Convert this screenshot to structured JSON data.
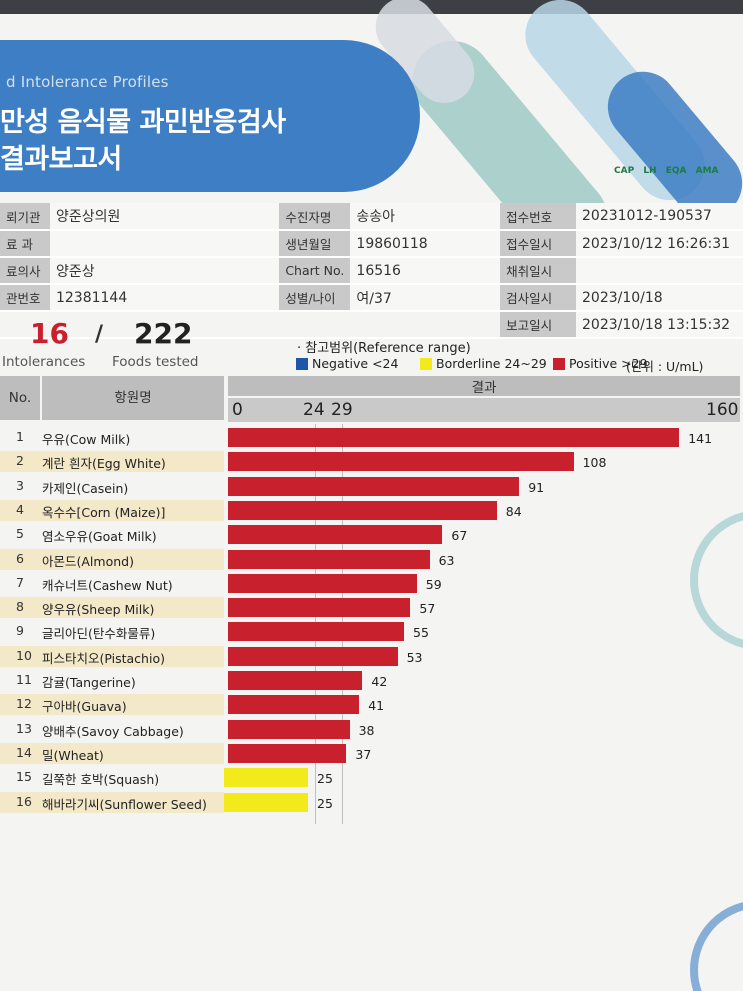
{
  "header": {
    "english_title": "d Intolerance Profiles",
    "korean_title_line1": "만성 음식물 과민반응검사",
    "korean_title_line2": "결과보고서",
    "logos": [
      "CAP",
      "LH",
      "EQA",
      "AMA"
    ]
  },
  "info": {
    "rows": [
      {
        "l1": "뢰기관",
        "v1": "양준상의원",
        "l2": "수진자명",
        "v2": "송송아",
        "l3": "접수번호",
        "v3": "20231012-190537"
      },
      {
        "l1": "료 과",
        "v1": "",
        "l2": "생년월일",
        "v2": "19860118",
        "l3": "접수일시",
        "v3": "2023/10/12  16:26:31"
      },
      {
        "l1": "료의사",
        "v1": "양준상",
        "l2": "Chart No.",
        "v2": "16516",
        "l3": "채취일시",
        "v3": ""
      },
      {
        "l1": "관번호",
        "v1": "12381144",
        "l2": "성별/나이",
        "v2": "여/37",
        "l3": "검사일시",
        "v3": "2023/10/18"
      },
      {
        "l1": "",
        "v1": "",
        "l2": "",
        "v2": "",
        "l3": "보고일시",
        "v3": "2023/10/18  13:15:32"
      }
    ]
  },
  "summary": {
    "intolerances": "16",
    "slash": "/",
    "foods_tested": "222",
    "intolerances_label": "Intolerances",
    "foods_label": "Foods tested"
  },
  "reference": {
    "title": "· 참고범위(Reference range)",
    "negative": "Negative <24",
    "borderline": "Borderline 24~29",
    "positive": "Positive >29",
    "unit": "(단위 : U/mL)",
    "colors": {
      "negative": "#1d56a8",
      "borderline": "#f2ea1a",
      "positive": "#c8202c"
    }
  },
  "table": {
    "col_no": "No.",
    "col_name": "항원명",
    "col_result": "결과",
    "ticks": [
      "0",
      "24",
      "29",
      "160"
    ]
  },
  "chart_data": {
    "type": "bar",
    "orientation": "horizontal",
    "xlim": [
      0,
      160
    ],
    "thresholds": [
      24,
      29
    ],
    "categories": [
      "우유(Cow Milk)",
      "계란 흰자(Egg White)",
      "카제인(Casein)",
      "옥수수[Corn (Maize)]",
      "염소우유(Goat Milk)",
      "아몬드(Almond)",
      "캐슈너트(Cashew Nut)",
      "양우유(Sheep Milk)",
      "글리아딘(탄수화물류)",
      "피스타치오(Pistachio)",
      "감귤(Tangerine)",
      "구아바(Guava)",
      "양배추(Savoy Cabbage)",
      "밀(Wheat)",
      "길쭉한 호박(Squash)",
      "해바라기씨(Sunflower Seed)"
    ],
    "numbers": [
      "1",
      "2",
      "3",
      "4",
      "5",
      "6",
      "7",
      "8",
      "9",
      "10",
      "11",
      "12",
      "13",
      "14",
      "15",
      "16"
    ],
    "values": [
      141,
      108,
      91,
      84,
      67,
      63,
      59,
      57,
      55,
      53,
      42,
      41,
      38,
      37,
      25,
      25
    ]
  }
}
